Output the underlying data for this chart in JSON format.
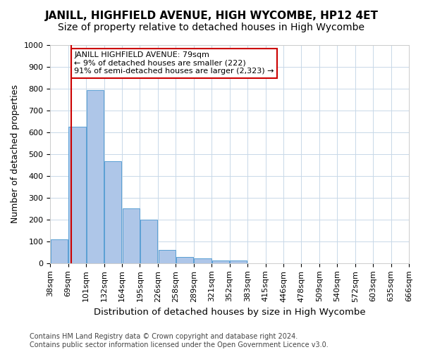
{
  "title": "JANILL, HIGHFIELD AVENUE, HIGH WYCOMBE, HP12 4ET",
  "subtitle": "Size of property relative to detached houses in High Wycombe",
  "xlabel": "Distribution of detached houses by size in High Wycombe",
  "ylabel": "Number of detached properties",
  "bar_values": [
    110,
    625,
    795,
    468,
    252,
    200,
    62,
    30,
    22,
    13,
    12,
    0,
    0,
    0,
    0,
    0,
    0,
    0,
    0,
    0
  ],
  "bin_labels": [
    "38sqm",
    "69sqm",
    "101sqm",
    "132sqm",
    "164sqm",
    "195sqm",
    "226sqm",
    "258sqm",
    "289sqm",
    "321sqm",
    "352sqm",
    "383sqm",
    "415sqm",
    "446sqm",
    "478sqm",
    "509sqm",
    "540sqm",
    "572sqm",
    "603sqm",
    "635sqm",
    "666sqm"
  ],
  "bar_color": "#aec6e8",
  "bar_edge_color": "#5a9fd4",
  "grid_color": "#c8d8e8",
  "ref_line_color": "#cc0000",
  "annotation_text": "JANILL HIGHFIELD AVENUE: 79sqm\n← 9% of detached houses are smaller (222)\n91% of semi-detached houses are larger (2,323) →",
  "annotation_box_color": "#cc0000",
  "ylim": [
    0,
    1000
  ],
  "yticks": [
    0,
    100,
    200,
    300,
    400,
    500,
    600,
    700,
    800,
    900,
    1000
  ],
  "footer": "Contains HM Land Registry data © Crown copyright and database right 2024.\nContains public sector information licensed under the Open Government Licence v3.0.",
  "title_fontsize": 11,
  "subtitle_fontsize": 10,
  "xlabel_fontsize": 9.5,
  "ylabel_fontsize": 9,
  "tick_fontsize": 8,
  "annotation_fontsize": 8,
  "footer_fontsize": 7
}
